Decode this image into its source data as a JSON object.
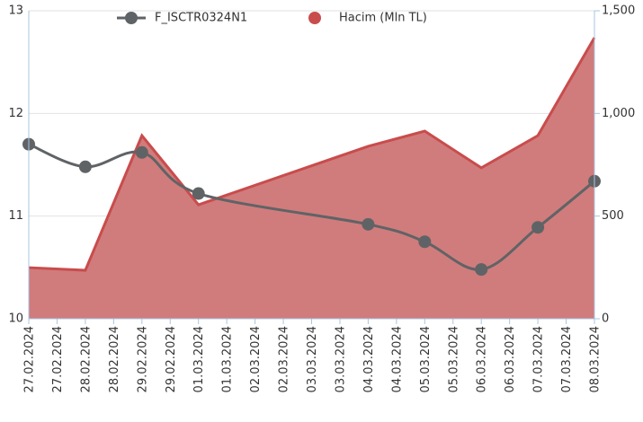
{
  "chart_data": {
    "type": "line-area",
    "x": [
      "27.02.2024",
      "28.02.2024",
      "29.02.2024",
      "01.03.2024",
      "04.03.2024",
      "05.03.2024",
      "06.03.2024",
      "07.03.2024",
      "08.03.2024"
    ],
    "xlim": [
      "27.02.2024",
      "08.03.2024"
    ],
    "xticks": [
      "27.02.2024",
      "27.02.2024",
      "28.02.2024",
      "28.02.2024",
      "29.02.2024",
      "29.02.2024",
      "01.03.2024",
      "01.03.2024",
      "02.03.2024",
      "02.03.2024",
      "03.03.2024",
      "03.03.2024",
      "04.03.2024",
      "04.03.2024",
      "05.03.2024",
      "05.03.2024",
      "06.03.2024",
      "06.03.2024",
      "07.03.2024",
      "07.03.2024",
      "08.03.2024"
    ],
    "series": [
      {
        "name": "F_ISCTR0324N1",
        "type": "line",
        "color": "#606366",
        "values": [
          11.7,
          11.48,
          11.62,
          11.22,
          10.92,
          10.75,
          10.48,
          10.89,
          11.34
        ]
      },
      {
        "name": "Hacim (Mln TL)",
        "type": "area",
        "axis": "y2",
        "color": "#d07c7c",
        "values": [
          249,
          236,
          892,
          555,
          840,
          914,
          735,
          892,
          1369
        ]
      }
    ],
    "ylim": [
      10,
      13
    ],
    "yticks": [
      10,
      11,
      12,
      13
    ],
    "y2lim": [
      0,
      1500
    ],
    "y2ticks": [
      0,
      500,
      {
        "value": 1000,
        "label": "1,000"
      },
      {
        "value": 1500,
        "label": "1,500"
      }
    ],
    "grid": true,
    "legend": "top"
  }
}
